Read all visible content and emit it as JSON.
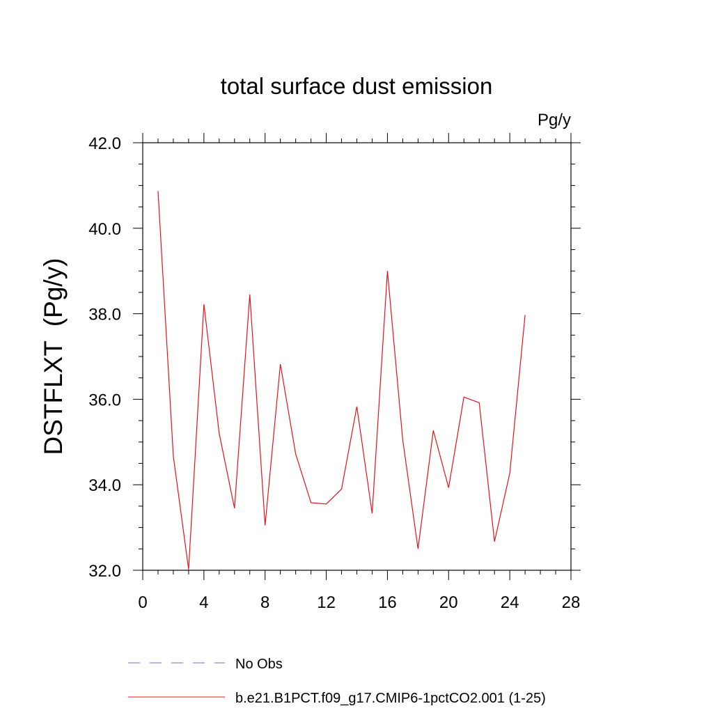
{
  "chart_data": {
    "type": "line",
    "title": "total surface dust emission",
    "units_label": "Pg/y",
    "ylabel": "DSTFLXT  (Pg/y)",
    "xlabel": "",
    "xlim": [
      0,
      28
    ],
    "ylim": [
      32.0,
      42.0
    ],
    "x_ticks": [
      "0",
      "4",
      "8",
      "12",
      "16",
      "20",
      "24",
      "28"
    ],
    "y_ticks": [
      "32.0",
      "34.0",
      "36.0",
      "38.0",
      "40.0",
      "42.0"
    ],
    "x_tick_values": [
      0,
      4,
      8,
      12,
      16,
      20,
      24,
      28
    ],
    "y_tick_values": [
      32,
      34,
      36,
      38,
      40,
      42
    ],
    "grid": false,
    "legend_position": "bottom",
    "legend": [
      {
        "label": "No Obs",
        "color": "#6d6dd6",
        "style": "dashed"
      },
      {
        "label": "b.e21.B1PCT.f09_g17.CMIP6-1pctCO2.001 (1-25)",
        "color": "#e8101a",
        "style": "solid"
      }
    ],
    "series": [
      {
        "name": "b.e21.B1PCT.f09_g17.CMIP6-1pctCO2.001 (1-25)",
        "color": "#e8101a",
        "x": [
          1,
          2,
          3,
          4,
          5,
          6,
          7,
          8,
          9,
          10,
          11,
          12,
          13,
          14,
          15,
          16,
          17,
          18,
          19,
          20,
          21,
          22,
          23,
          24,
          25
        ],
        "values": [
          40.87,
          34.67,
          32.02,
          38.22,
          35.2,
          33.45,
          38.45,
          33.05,
          36.82,
          34.72,
          33.58,
          33.55,
          33.9,
          35.83,
          33.33,
          39.0,
          35.05,
          32.5,
          35.27,
          33.93,
          36.05,
          35.92,
          32.67,
          34.27,
          37.97
        ]
      }
    ]
  }
}
